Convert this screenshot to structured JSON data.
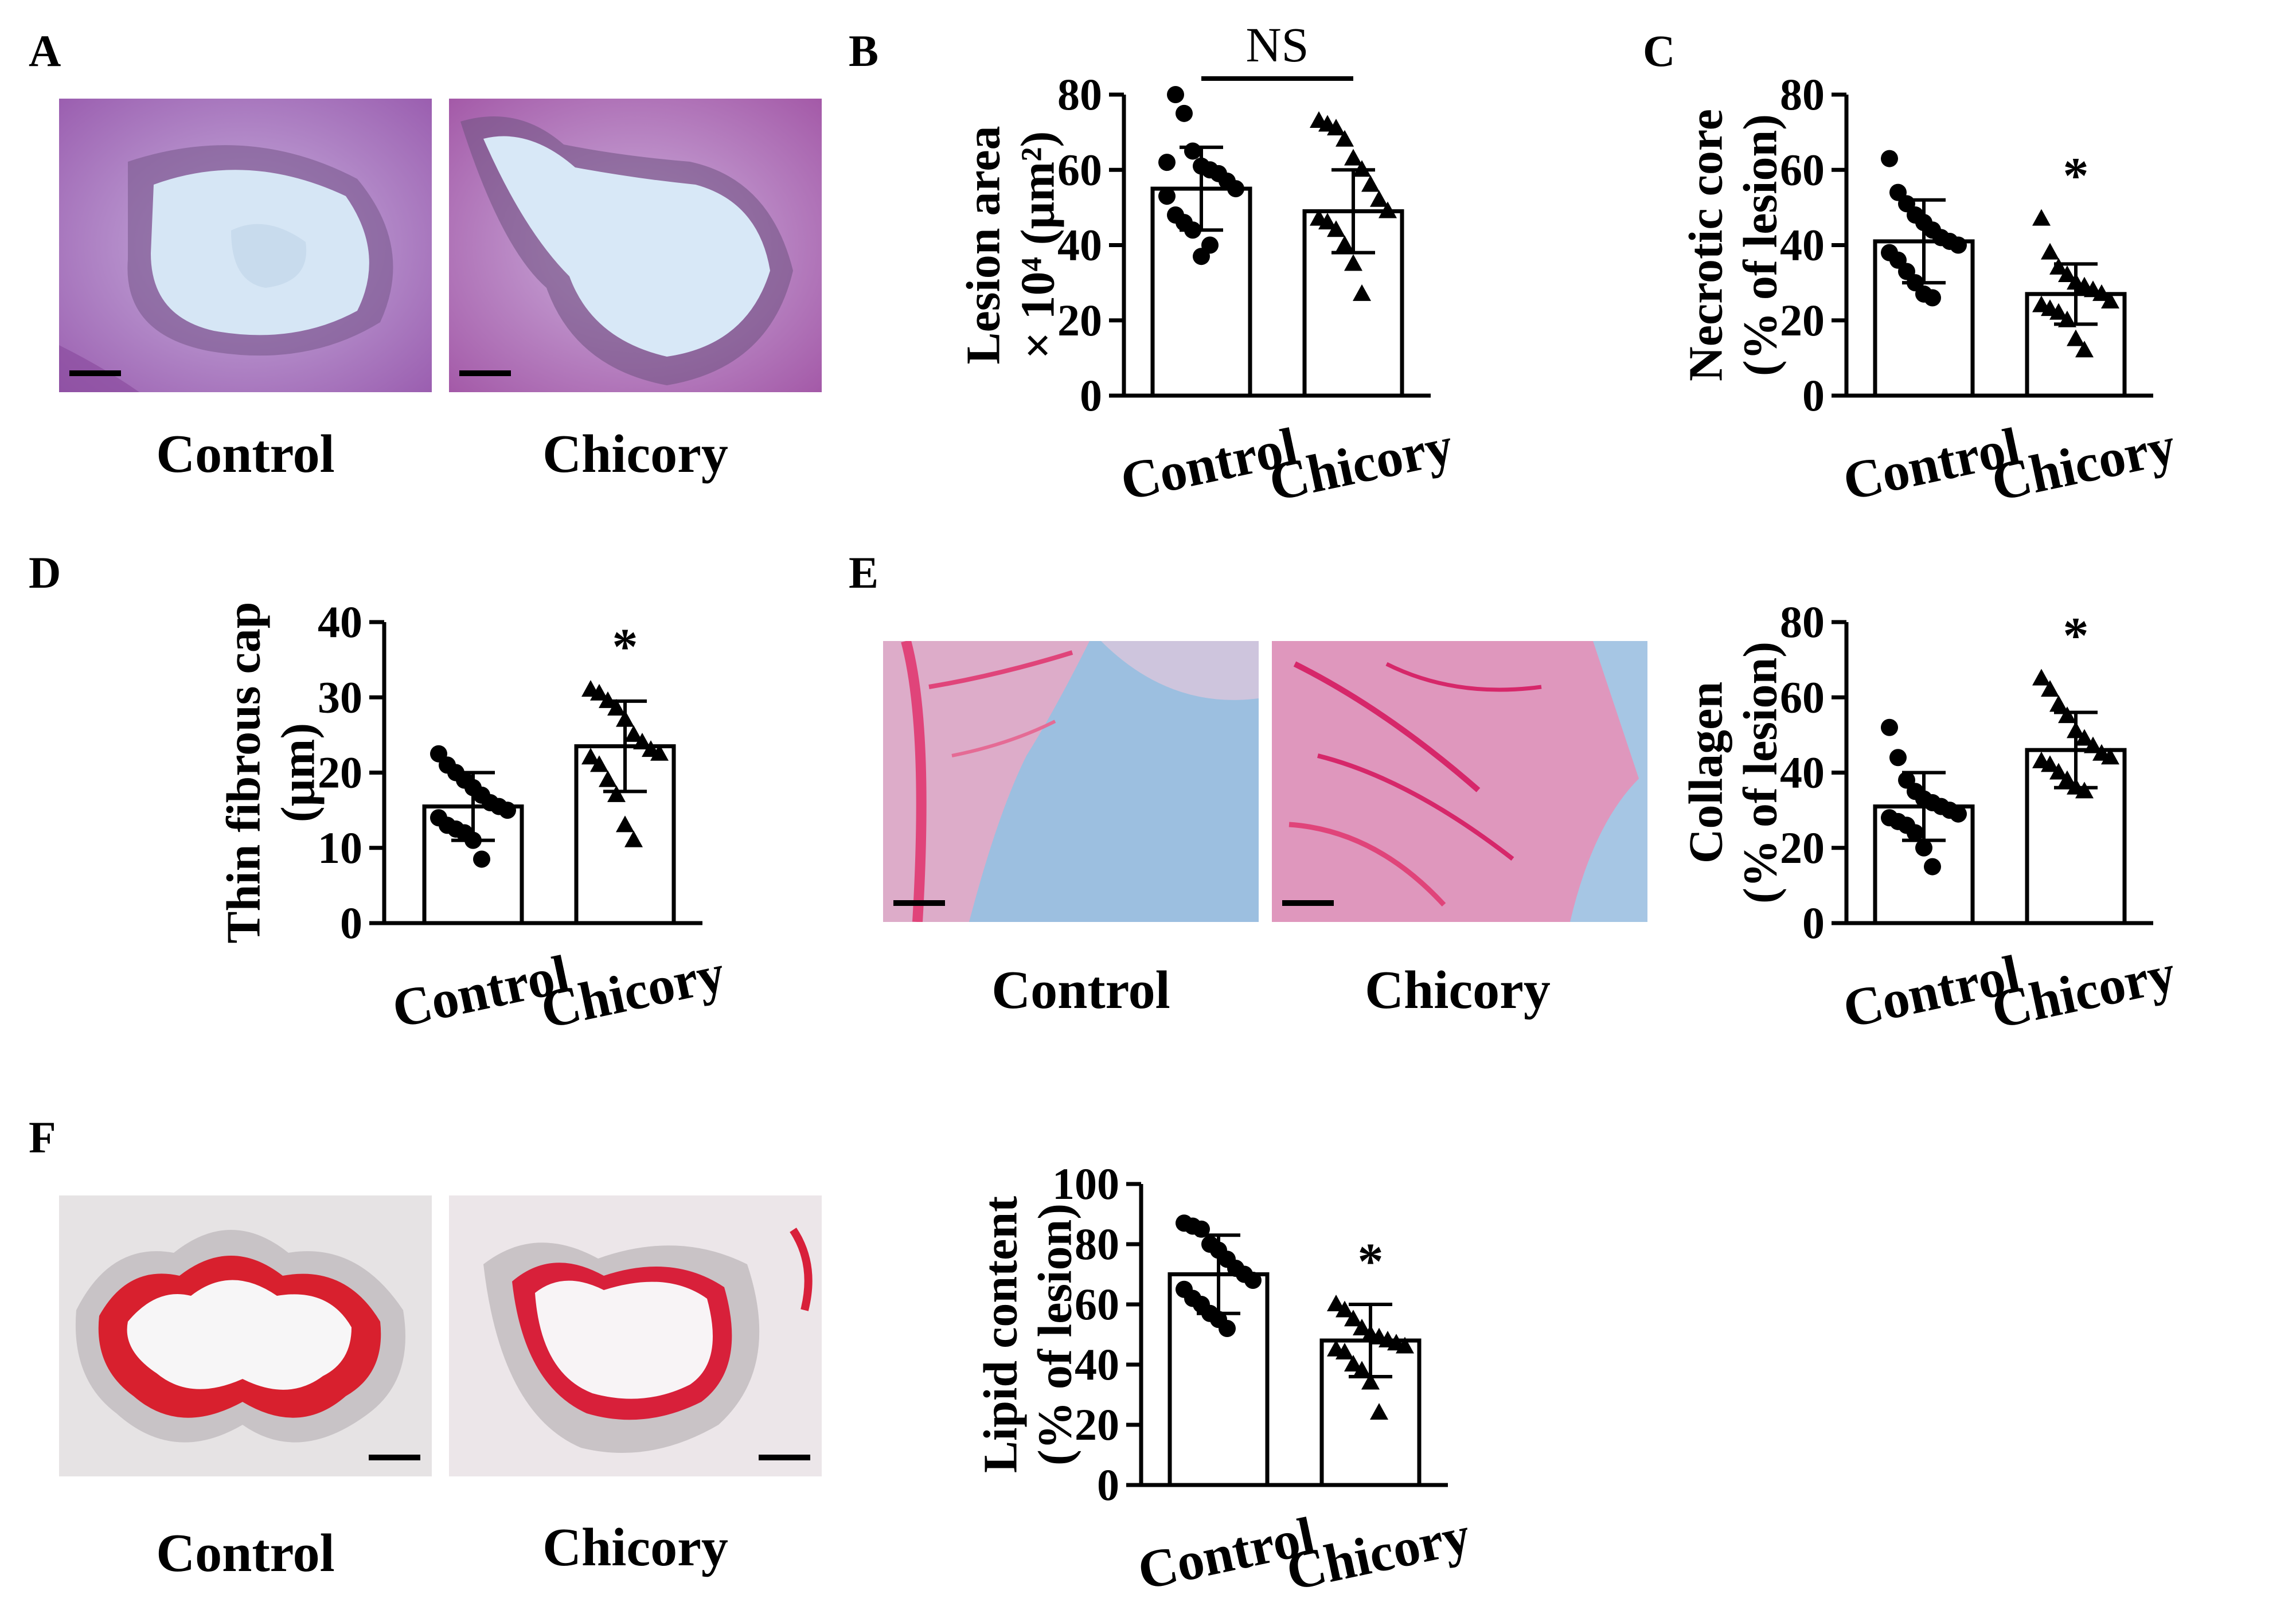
{
  "panel_labels": [
    "A",
    "B",
    "C",
    "D",
    "E",
    "F"
  ],
  "micro_captions": {
    "A": [
      "Control",
      "Chicory"
    ],
    "E": [
      "Control",
      "Chicory"
    ],
    "F": [
      "Control",
      "Chicory"
    ]
  },
  "colors": {
    "he_stain": "#b46cbf",
    "sirius_red": "#e0447a",
    "oil_red": "#d8203a",
    "bar_fill": "#ffffff",
    "axis": "#000000"
  },
  "chart_data": [
    {
      "id": "B",
      "type": "bar",
      "categories": [
        "Control",
        "Chicory"
      ],
      "values": [
        55,
        49
      ],
      "errors": [
        11,
        11
      ],
      "ylabel_lines": [
        "Lesion area",
        "× 10⁴ (μm²)"
      ],
      "ylim": [
        0,
        80
      ],
      "ticks": [
        0,
        20,
        40,
        60,
        80
      ],
      "significance": "NS",
      "sig_bracket": true,
      "points": [
        [
          62,
          80,
          75,
          65,
          61,
          60,
          59,
          57,
          55,
          53,
          48,
          46,
          44,
          37,
          40
        ],
        [
          73,
          72,
          71,
          68,
          63,
          60,
          56,
          52,
          49,
          47,
          46,
          44,
          40,
          35,
          27
        ]
      ]
    },
    {
      "id": "C",
      "type": "bar",
      "categories": [
        "Control",
        "Chicory"
      ],
      "values": [
        41,
        27
      ],
      "errors": [
        11,
        8
      ],
      "ylabel_lines": [
        "Necrotic core",
        "(% of lesion)"
      ],
      "ylim": [
        0,
        80
      ],
      "ticks": [
        0,
        20,
        40,
        60,
        80
      ],
      "significance": "*",
      "sig_bracket": false,
      "points": [
        [
          63,
          54,
          51,
          48,
          46,
          44,
          42,
          41,
          40,
          38,
          36,
          33,
          30,
          27,
          26
        ],
        [
          47,
          38,
          34,
          32,
          30,
          29,
          28,
          27,
          25,
          24,
          23,
          22,
          20,
          15,
          12
        ]
      ]
    },
    {
      "id": "D",
      "type": "bar",
      "categories": [
        "Control",
        "Chicory"
      ],
      "values": [
        15.5,
        23.5
      ],
      "errors": [
        4.5,
        6
      ],
      "ylabel_lines": [
        "Thin fibrous cap",
        "(μm)"
      ],
      "ylim": [
        0,
        40
      ],
      "ticks": [
        0,
        10,
        20,
        30,
        40
      ],
      "significance": "*",
      "sig_bracket": false,
      "points": [
        [
          22.5,
          21,
          20,
          19,
          18,
          17,
          16,
          15.5,
          15,
          14,
          13,
          12.5,
          12,
          11,
          8.5
        ],
        [
          31,
          30.5,
          29.5,
          28.5,
          27,
          25,
          24,
          23,
          22.5,
          22,
          21,
          19,
          17,
          13,
          11
        ]
      ]
    },
    {
      "id": "E",
      "type": "bar",
      "categories": [
        "Control",
        "Chicory"
      ],
      "values": [
        31,
        46
      ],
      "errors": [
        9,
        10
      ],
      "ylabel_lines": [
        "Collagen",
        "(% of lesion)"
      ],
      "ylim": [
        0,
        80
      ],
      "ticks": [
        0,
        20,
        40,
        60,
        80
      ],
      "significance": "*",
      "sig_bracket": false,
      "points": [
        [
          52,
          44,
          38,
          35,
          33,
          32,
          31,
          30,
          29,
          28,
          27,
          26,
          24,
          20,
          15
        ],
        [
          65,
          62,
          58,
          55,
          51,
          49,
          47,
          45,
          44,
          43,
          42,
          40,
          38,
          36,
          35
        ]
      ]
    },
    {
      "id": "F",
      "type": "bar",
      "categories": [
        "Control",
        "Chicory"
      ],
      "values": [
        70,
        48
      ],
      "errors": [
        13,
        12
      ],
      "ylabel_lines": [
        "Lipid content",
        "(% of lesion)"
      ],
      "ylim": [
        0,
        100
      ],
      "ticks": [
        0,
        20,
        40,
        60,
        80,
        100
      ],
      "significance": "*",
      "sig_bracket": false,
      "points": [
        [
          87,
          86,
          85,
          80,
          78,
          75,
          72,
          70,
          68,
          65,
          62,
          60,
          57,
          55,
          52
        ],
        [
          60,
          58,
          55,
          52,
          50,
          49,
          48,
          47,
          46,
          45,
          44,
          40,
          38,
          34,
          24
        ]
      ]
    }
  ]
}
